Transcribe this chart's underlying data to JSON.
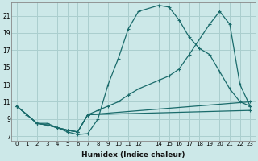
{
  "xlabel": "Humidex (Indice chaleur)",
  "bg_color": "#cce8e8",
  "grid_color": "#aacece",
  "line_color": "#1a6b6b",
  "xlim": [
    -0.5,
    23.5
  ],
  "ylim": [
    6.5,
    22.5
  ],
  "yticks": [
    7,
    9,
    11,
    13,
    15,
    17,
    19,
    21
  ],
  "xticks": [
    0,
    1,
    2,
    3,
    4,
    5,
    6,
    7,
    8,
    9,
    10,
    11,
    12,
    14,
    15,
    16,
    17,
    18,
    19,
    20,
    21,
    22,
    23
  ],
  "line1_x": [
    0,
    1,
    2,
    3,
    4,
    5,
    6,
    7,
    8,
    9,
    10,
    11,
    12,
    14,
    15,
    16,
    17,
    18,
    19,
    20,
    21,
    22,
    23
  ],
  "line1_y": [
    10.5,
    9.5,
    8.5,
    8.5,
    8.0,
    7.5,
    7.2,
    7.3,
    9.0,
    13.0,
    16.0,
    19.5,
    21.5,
    22.2,
    22.0,
    20.5,
    18.5,
    17.2,
    16.5,
    14.5,
    12.5,
    11.0,
    10.5
  ],
  "line2_x": [
    0,
    2,
    3,
    4,
    5,
    6,
    7,
    8,
    9,
    10,
    11,
    12,
    14,
    15,
    16,
    17,
    19,
    20,
    21,
    22,
    23
  ],
  "line2_y": [
    10.5,
    8.5,
    8.3,
    8.0,
    7.7,
    7.5,
    9.5,
    10.0,
    10.5,
    11.0,
    11.8,
    12.5,
    13.5,
    14.0,
    14.8,
    16.5,
    20.0,
    21.5,
    20.0,
    13.0,
    10.5
  ],
  "line3_x": [
    0,
    2,
    3,
    5,
    6,
    7,
    23
  ],
  "line3_y": [
    10.5,
    8.5,
    8.3,
    7.7,
    7.5,
    9.5,
    11.0
  ],
  "line4_x": [
    0,
    2,
    3,
    5,
    6,
    7,
    23
  ],
  "line4_y": [
    10.5,
    8.5,
    8.3,
    7.7,
    7.5,
    9.5,
    10.0
  ]
}
